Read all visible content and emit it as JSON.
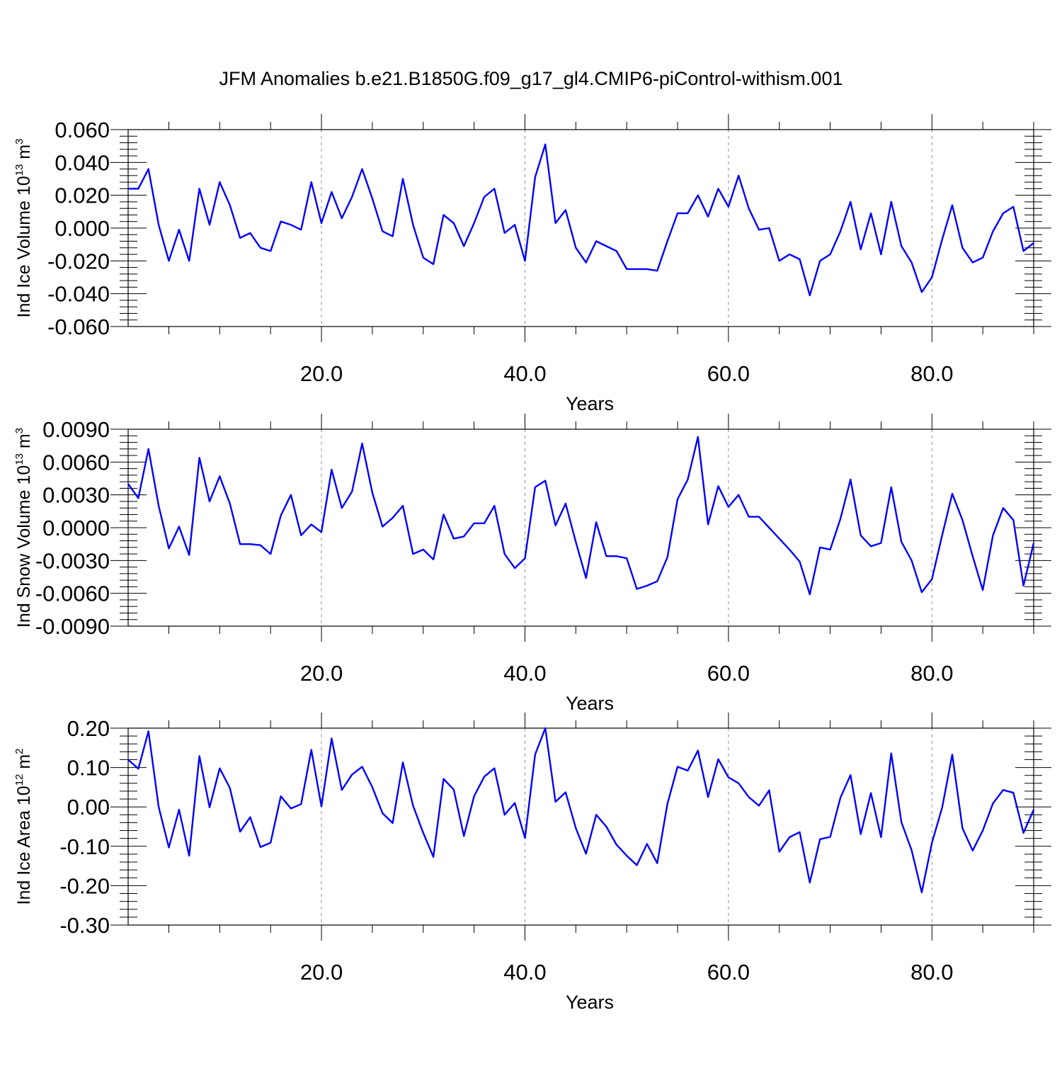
{
  "title": "JFM Anomalies b.e21.B1850G.f09_g17_gl4.CMIP6-piControl-withism.001",
  "colors": {
    "line": "#0000ff",
    "axis": "#000000",
    "grid": "#8c8c8c"
  },
  "chart_data": [
    {
      "type": "line",
      "ylabel_main": "Ind Ice Volume 10",
      "ylabel_exp": "13",
      "ylabel_unit": " m",
      "ylabel_unit_exp": "3",
      "xlabel": "Years",
      "xlim": [
        1,
        90
      ],
      "ylim": [
        -0.06,
        0.06
      ],
      "xticks": [
        20,
        40,
        60,
        80
      ],
      "xtick_labels": [
        "20.0",
        "40.0",
        "60.0",
        "80.0"
      ],
      "yticks": [
        -0.06,
        -0.04,
        -0.02,
        0.0,
        0.02,
        0.04,
        0.06
      ],
      "ytick_labels": [
        "-0.060",
        "-0.040",
        "-0.020",
        "0.000",
        "0.020",
        "0.040",
        "0.060"
      ],
      "grid": "dashed vertical at 20, 40, 60, 80",
      "x": [
        1,
        2,
        3,
        4,
        5,
        6,
        7,
        8,
        9,
        10,
        11,
        12,
        13,
        14,
        15,
        16,
        17,
        18,
        19,
        20,
        21,
        22,
        23,
        24,
        25,
        26,
        27,
        28,
        29,
        30,
        31,
        32,
        33,
        34,
        35,
        36,
        37,
        38,
        39,
        40,
        41,
        42,
        43,
        44,
        45,
        46,
        47,
        48,
        49,
        50,
        51,
        52,
        53,
        54,
        55,
        56,
        57,
        58,
        59,
        60,
        61,
        62,
        63,
        64,
        65,
        66,
        67,
        68,
        69,
        70,
        71,
        72,
        73,
        74,
        75,
        76,
        77,
        78,
        79,
        80,
        81,
        82,
        83,
        84,
        85,
        86,
        87,
        88,
        89,
        90
      ],
      "values": [
        0.024,
        0.024,
        0.036,
        0.002,
        -0.02,
        -0.001,
        -0.02,
        0.024,
        0.002,
        0.028,
        0.014,
        -0.006,
        -0.003,
        -0.012,
        -0.014,
        0.004,
        0.002,
        -0.001,
        0.028,
        0.003,
        0.022,
        0.006,
        0.019,
        0.036,
        0.018,
        -0.002,
        -0.005,
        0.03,
        0.002,
        -0.018,
        -0.022,
        0.008,
        0.003,
        -0.011,
        0.003,
        0.019,
        0.024,
        -0.003,
        0.002,
        -0.02,
        0.031,
        0.051,
        0.003,
        0.011,
        -0.012,
        -0.021,
        -0.008,
        -0.011,
        -0.014,
        -0.025,
        -0.025,
        -0.025,
        -0.026,
        -0.008,
        0.009,
        0.009,
        0.02,
        0.007,
        0.024,
        0.013,
        0.032,
        0.012,
        -0.001,
        -0.0,
        -0.02,
        -0.016,
        -0.019,
        -0.041,
        -0.02,
        -0.016,
        -0.002,
        0.016,
        -0.013,
        0.009,
        -0.016,
        0.016,
        -0.011,
        -0.021,
        -0.039,
        -0.03,
        -0.007,
        0.014,
        -0.012,
        -0.021,
        -0.018,
        -0.002,
        0.009,
        0.013,
        -0.014,
        -0.009
      ]
    },
    {
      "type": "line",
      "ylabel_main": "Ind Snow Volume 10",
      "ylabel_exp": "13",
      "ylabel_unit": " m",
      "ylabel_unit_exp": "3",
      "xlabel": "Years",
      "xlim": [
        1,
        90
      ],
      "ylim": [
        -0.009,
        0.009
      ],
      "xticks": [
        20,
        40,
        60,
        80
      ],
      "xtick_labels": [
        "20.0",
        "40.0",
        "60.0",
        "80.0"
      ],
      "yticks": [
        -0.009,
        -0.006,
        -0.003,
        0.0,
        0.003,
        0.006,
        0.009
      ],
      "ytick_labels": [
        "-0.0090",
        "-0.0060",
        "-0.0030",
        "0.0000",
        "0.0030",
        "0.0060",
        "0.0090"
      ],
      "grid": "dashed vertical at 20, 40, 60, 80",
      "x": [
        1,
        2,
        3,
        4,
        5,
        6,
        7,
        8,
        9,
        10,
        11,
        12,
        13,
        14,
        15,
        16,
        17,
        18,
        19,
        20,
        21,
        22,
        23,
        24,
        25,
        26,
        27,
        28,
        29,
        30,
        31,
        32,
        33,
        34,
        35,
        36,
        37,
        38,
        39,
        40,
        41,
        42,
        43,
        44,
        45,
        46,
        47,
        48,
        49,
        50,
        51,
        52,
        53,
        54,
        55,
        56,
        57,
        58,
        59,
        60,
        61,
        62,
        63,
        64,
        65,
        66,
        67,
        68,
        69,
        70,
        71,
        72,
        73,
        74,
        75,
        76,
        77,
        78,
        79,
        80,
        81,
        82,
        83,
        84,
        85,
        86,
        87,
        88,
        89,
        90
      ],
      "values": [
        0.004,
        0.0027,
        0.0072,
        0.002,
        -0.0019,
        0.0001,
        -0.0025,
        0.0064,
        0.0024,
        0.0047,
        0.0022,
        -0.0015,
        -0.0015,
        -0.0016,
        -0.0024,
        0.0011,
        0.003,
        -0.0007,
        0.0003,
        -0.0004,
        0.0053,
        0.0018,
        0.0033,
        0.0077,
        0.0032,
        0.0001,
        0.0009,
        0.002,
        -0.0024,
        -0.002,
        -0.0029,
        0.0012,
        -0.001,
        -0.0008,
        0.0004,
        0.0004,
        0.002,
        -0.0024,
        -0.0037,
        -0.0028,
        0.0037,
        0.0043,
        0.0002,
        0.0022,
        -0.0013,
        -0.0046,
        0.0005,
        -0.0026,
        -0.0026,
        -0.0028,
        -0.0056,
        -0.0053,
        -0.0049,
        -0.0027,
        0.0026,
        0.0044,
        0.0083,
        0.0003,
        0.0038,
        0.0019,
        0.003,
        0.001,
        0.001,
        0.0,
        -0.001,
        -0.002,
        -0.0031,
        -0.0061,
        -0.0018,
        -0.002,
        0.0008,
        0.0044,
        -0.0007,
        -0.0017,
        -0.0014,
        0.0037,
        -0.0013,
        -0.003,
        -0.0059,
        -0.0047,
        -0.0007,
        0.0031,
        0.0007,
        -0.0026,
        -0.0057,
        -0.0007,
        0.0018,
        0.0007,
        -0.0053,
        -0.0014
      ]
    },
    {
      "type": "line",
      "ylabel_main": "Ind Ice Area 10",
      "ylabel_exp": "12",
      "ylabel_unit": " m",
      "ylabel_unit_exp": "2",
      "xlabel": "Years",
      "xlim": [
        1,
        90
      ],
      "ylim": [
        -0.3,
        0.2
      ],
      "xticks": [
        20,
        40,
        60,
        80
      ],
      "xtick_labels": [
        "20.0",
        "40.0",
        "60.0",
        "80.0"
      ],
      "yticks": [
        -0.3,
        -0.2,
        -0.1,
        0.0,
        0.1,
        0.2
      ],
      "ytick_labels": [
        "-0.30",
        "-0.20",
        "-0.10",
        "0.00",
        "0.10",
        "0.20"
      ],
      "grid": "dashed vertical at 20, 40, 60, 80",
      "x": [
        1,
        2,
        3,
        4,
        5,
        6,
        7,
        8,
        9,
        10,
        11,
        12,
        13,
        14,
        15,
        16,
        17,
        18,
        19,
        20,
        21,
        22,
        23,
        24,
        25,
        26,
        27,
        28,
        29,
        30,
        31,
        32,
        33,
        34,
        35,
        36,
        37,
        38,
        39,
        40,
        41,
        42,
        43,
        44,
        45,
        46,
        47,
        48,
        49,
        50,
        51,
        52,
        53,
        54,
        55,
        56,
        57,
        58,
        59,
        60,
        61,
        62,
        63,
        64,
        65,
        66,
        67,
        68,
        69,
        70,
        71,
        72,
        73,
        74,
        75,
        76,
        77,
        78,
        79,
        80,
        81,
        82,
        83,
        84,
        85,
        86,
        87,
        88,
        89,
        90
      ],
      "values": [
        0.12,
        0.097,
        0.192,
        0.0,
        -0.103,
        -0.007,
        -0.124,
        0.129,
        -0.001,
        0.098,
        0.048,
        -0.063,
        -0.026,
        -0.102,
        -0.091,
        0.027,
        -0.004,
        0.007,
        0.145,
        0.001,
        0.174,
        0.043,
        0.082,
        0.102,
        0.05,
        -0.016,
        -0.041,
        0.113,
        0.003,
        -0.066,
        -0.127,
        0.071,
        0.044,
        -0.074,
        0.027,
        0.077,
        0.098,
        -0.02,
        0.01,
        -0.079,
        0.133,
        0.2,
        0.013,
        0.037,
        -0.054,
        -0.119,
        -0.02,
        -0.05,
        -0.096,
        -0.124,
        -0.148,
        -0.094,
        -0.143,
        0.008,
        0.102,
        0.092,
        0.143,
        0.025,
        0.121,
        0.075,
        0.06,
        0.025,
        0.003,
        0.042,
        -0.114,
        -0.077,
        -0.064,
        -0.192,
        -0.082,
        -0.076,
        0.023,
        0.081,
        -0.069,
        0.035,
        -0.077,
        0.136,
        -0.039,
        -0.11,
        -0.217,
        -0.091,
        -0.002,
        0.133,
        -0.054,
        -0.111,
        -0.06,
        0.009,
        0.043,
        0.036,
        -0.066,
        -0.007
      ]
    }
  ]
}
